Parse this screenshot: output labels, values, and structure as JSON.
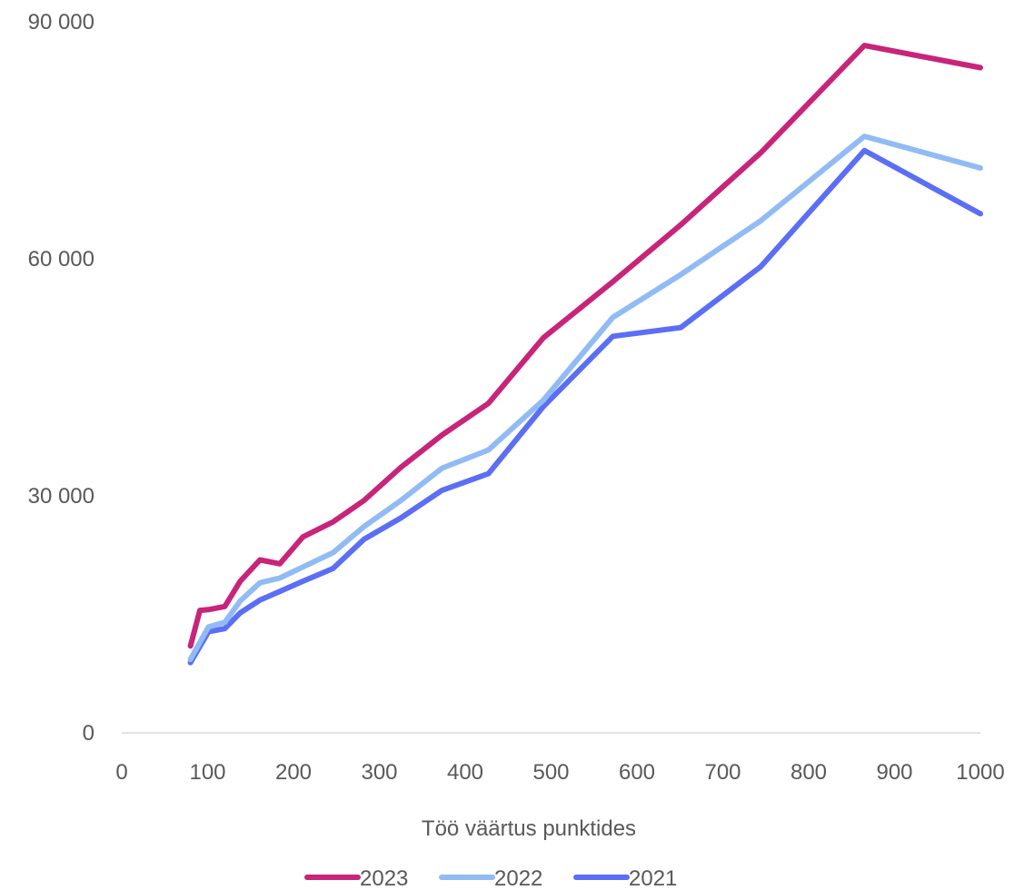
{
  "chart_data": {
    "type": "line",
    "title": "",
    "xlabel": "Töö väärtus punktides",
    "ylabel": "",
    "xlim": [
      0,
      1000
    ],
    "ylim": [
      0,
      90000
    ],
    "x_ticks": [
      0,
      100,
      200,
      300,
      400,
      500,
      600,
      700,
      800,
      900,
      1000
    ],
    "x_tick_labels": [
      "0",
      "100",
      "200",
      "300",
      "400",
      "500",
      "600",
      "700",
      "800",
      "900",
      "1000"
    ],
    "y_ticks": [
      0,
      30000,
      60000,
      90000
    ],
    "y_tick_labels": [
      "0",
      "30 000",
      "60 000",
      "90 000"
    ],
    "grid": false,
    "legend_position": "bottom",
    "series": [
      {
        "name": "2023",
        "color": "#C8247A",
        "points": [
          [
            80,
            11000
          ],
          [
            91,
            15500
          ],
          [
            101,
            15600
          ],
          [
            120,
            16000
          ],
          [
            138,
            19200
          ],
          [
            161,
            21900
          ],
          [
            184,
            21400
          ],
          [
            211,
            24800
          ],
          [
            246,
            26700
          ],
          [
            282,
            29400
          ],
          [
            325,
            33600
          ],
          [
            373,
            37700
          ],
          [
            427,
            41700
          ],
          [
            491,
            50000
          ],
          [
            572,
            57100
          ],
          [
            651,
            64300
          ],
          [
            744,
            73400
          ],
          [
            865,
            87000
          ],
          [
            1000,
            84200
          ]
        ]
      },
      {
        "name": "2022",
        "color": "#91BBF4",
        "points": [
          [
            80,
            9300
          ],
          [
            101,
            13400
          ],
          [
            120,
            14000
          ],
          [
            138,
            16700
          ],
          [
            161,
            19000
          ],
          [
            184,
            19600
          ],
          [
            211,
            21000
          ],
          [
            246,
            22800
          ],
          [
            282,
            26100
          ],
          [
            325,
            29400
          ],
          [
            373,
            33500
          ],
          [
            427,
            35800
          ],
          [
            491,
            42100
          ],
          [
            572,
            52600
          ],
          [
            651,
            58000
          ],
          [
            744,
            64800
          ],
          [
            865,
            75500
          ],
          [
            1000,
            71500
          ]
        ]
      },
      {
        "name": "2021",
        "color": "#5B6EF5",
        "points": [
          [
            80,
            8900
          ],
          [
            101,
            12800
          ],
          [
            120,
            13200
          ],
          [
            138,
            15200
          ],
          [
            161,
            16800
          ],
          [
            184,
            17900
          ],
          [
            211,
            19200
          ],
          [
            246,
            20800
          ],
          [
            282,
            24500
          ],
          [
            325,
            27200
          ],
          [
            373,
            30700
          ],
          [
            427,
            32800
          ],
          [
            491,
            41300
          ],
          [
            572,
            50200
          ],
          [
            651,
            51300
          ],
          [
            744,
            59000
          ],
          [
            865,
            73700
          ],
          [
            1000,
            65700
          ]
        ]
      }
    ]
  }
}
